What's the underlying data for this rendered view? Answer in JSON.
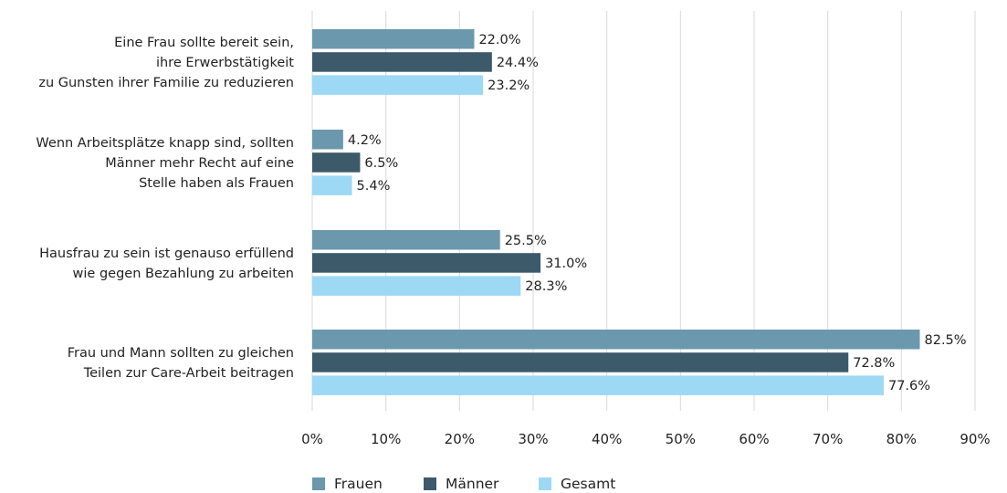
{
  "chart_data": {
    "type": "bar",
    "orientation": "horizontal",
    "categories": [
      [
        "Eine Frau sollte bereit sein,",
        "ihre Erwerbstätigkeit",
        "zu Gunsten ihrer Familie zu reduzieren"
      ],
      [
        "Wenn Arbeitsplätze knapp sind, sollten",
        "Männer mehr Recht auf eine",
        "Stelle haben als Frauen"
      ],
      [
        "Hausfrau zu sein ist genauso erfüllend",
        "wie gegen Bezahlung zu arbeiten"
      ],
      [
        "Frau und Mann sollten zu gleichen",
        "Teilen zur Care-Arbeit beitragen"
      ]
    ],
    "series": [
      {
        "name": "Frauen",
        "color": "#6b98ad",
        "values": [
          22.0,
          4.2,
          25.5,
          82.5
        ],
        "labels": [
          "22.0%",
          "4.2%",
          "25.5%",
          "82.5%"
        ]
      },
      {
        "name": "Männer",
        "color": "#3d5a6a",
        "values": [
          24.4,
          6.5,
          31.0,
          72.8
        ],
        "labels": [
          "24.4%",
          "6.5%",
          "31.0%",
          "72.8%"
        ]
      },
      {
        "name": "Gesamt",
        "color": "#9dd8f5",
        "values": [
          23.2,
          5.4,
          28.3,
          77.6
        ],
        "labels": [
          "23.2%",
          "5.4%",
          "28.3%",
          "77.6%"
        ]
      }
    ],
    "xlim": [
      0,
      90
    ],
    "xticks": [
      0,
      10,
      20,
      30,
      40,
      50,
      60,
      70,
      80,
      90
    ],
    "xtick_labels": [
      "0%",
      "10%",
      "20%",
      "30%",
      "40%",
      "50%",
      "60%",
      "70%",
      "80%",
      "90%"
    ],
    "grid": "vertical",
    "legend_position": "bottom-left",
    "gridline_color": "#d9d9d9"
  }
}
